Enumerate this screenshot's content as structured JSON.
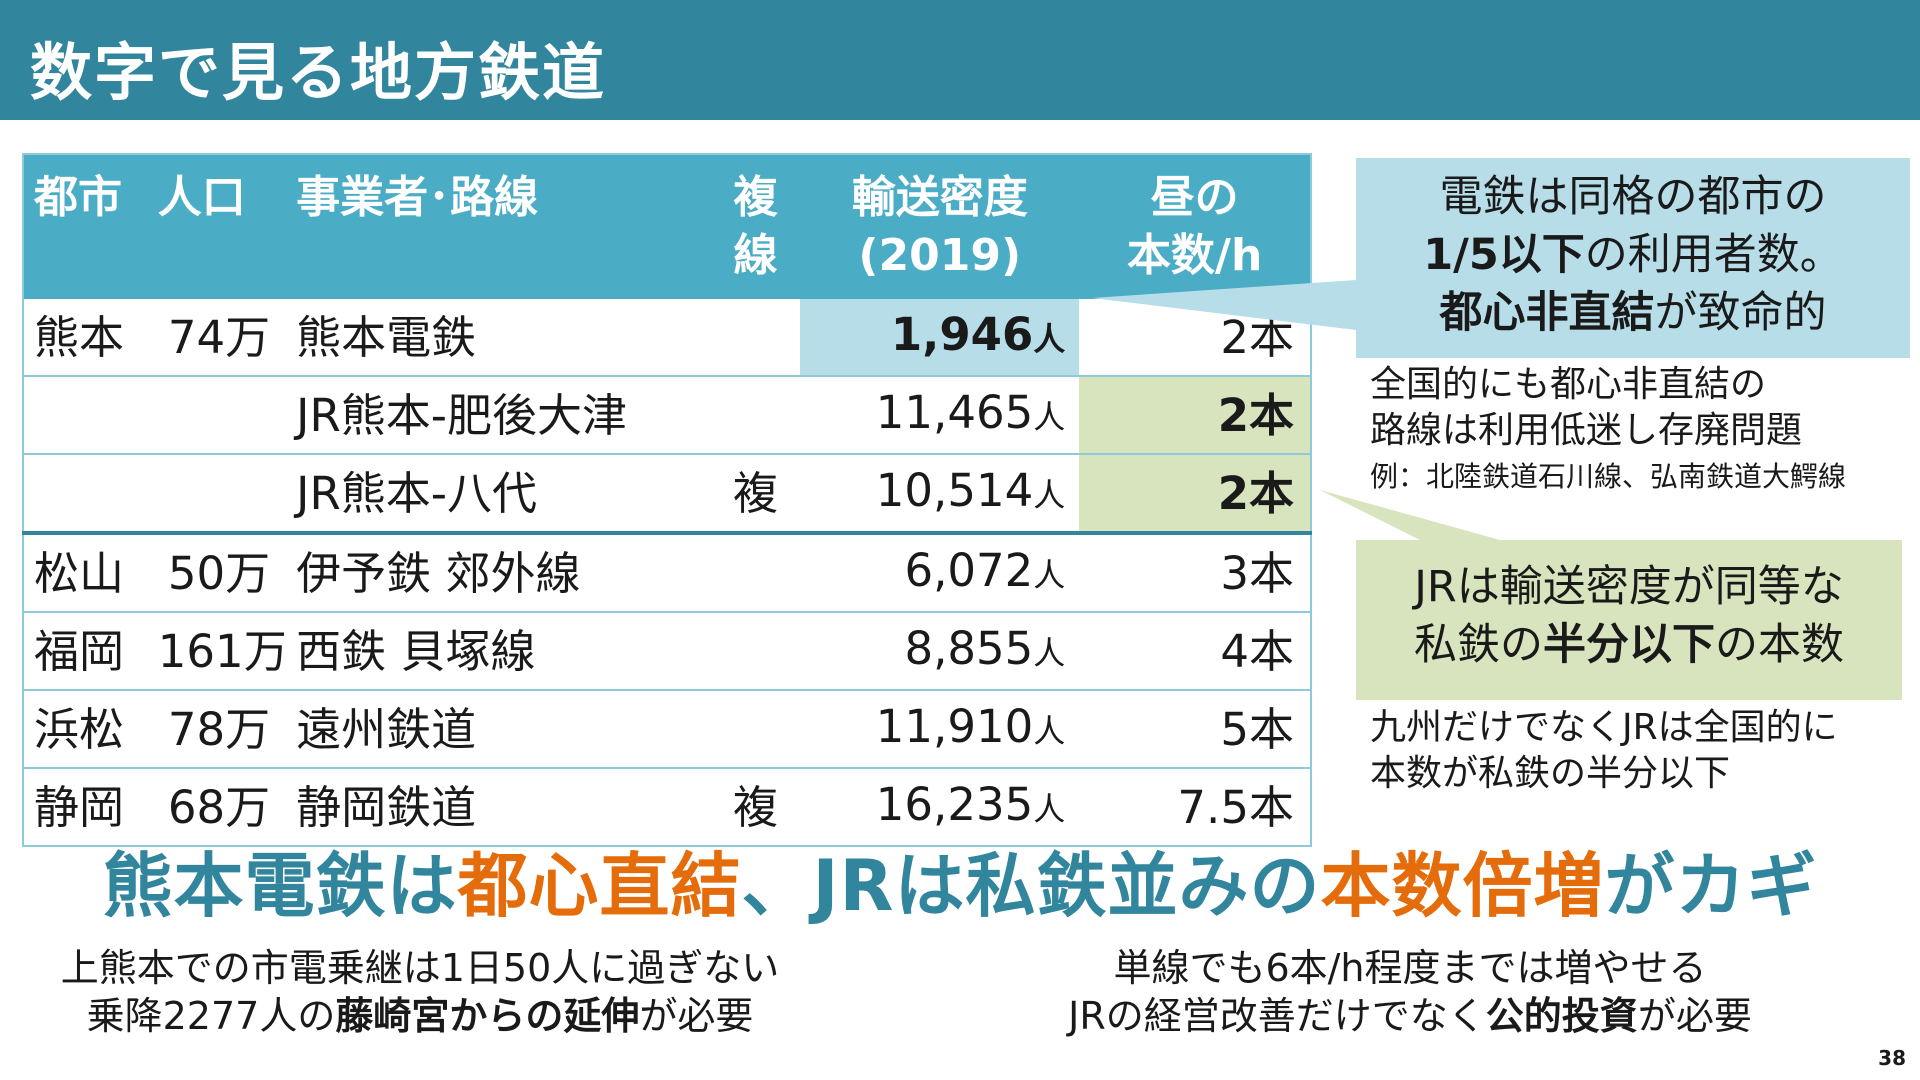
{
  "header": {
    "title": "数字で見る地方鉄道"
  },
  "table": {
    "headers": {
      "city": "都市",
      "population": "人口",
      "line": "事業者･路線",
      "double_line1": "複",
      "double_line2": "線",
      "density1": "輸送密度",
      "density2": "(2019)",
      "freq1": "昼の",
      "freq2": "本数/h"
    },
    "rows": [
      {
        "city": "熊本",
        "population": "74万",
        "line": "熊本電鉄",
        "double": "",
        "density": "1,946",
        "density_unit": "人",
        "freq": "2本"
      },
      {
        "city": "",
        "population": "",
        "line": "JR熊本-肥後大津",
        "double": "",
        "density": "11,465",
        "density_unit": "人",
        "freq": "2本"
      },
      {
        "city": "",
        "population": "",
        "line": "JR熊本-八代",
        "double": "複",
        "density": "10,514",
        "density_unit": "人",
        "freq": "2本"
      },
      {
        "city": "松山",
        "population": "50万",
        "line": "伊予鉄 郊外線",
        "double": "",
        "density": "6,072",
        "density_unit": "人",
        "freq": "3本"
      },
      {
        "city": "福岡",
        "population": "161万",
        "line": "西鉄 貝塚線",
        "double": "",
        "density": "8,855",
        "density_unit": "人",
        "freq": "4本"
      },
      {
        "city": "浜松",
        "population": "78万",
        "line": "遠州鉄道",
        "double": "",
        "density": "11,910",
        "density_unit": "人",
        "freq": "5本"
      },
      {
        "city": "静岡",
        "population": "68万",
        "line": "静岡鉄道",
        "double": "複",
        "density": "16,235",
        "density_unit": "人",
        "freq": "7.5本"
      }
    ]
  },
  "callout_blue": {
    "line1": "電鉄は同格の都市の",
    "line2_bold": "1/5以下",
    "line2_rest": "の利用者数。",
    "line3_bold": "都心非直結",
    "line3_rest": "が致命的"
  },
  "note_blue": {
    "line1": "全国的にも都心非直結の",
    "line2": "路線は利用低迷し存廃問題",
    "line3": "例：北陸鉄道石川線、弘南鉄道大鰐線"
  },
  "callout_green": {
    "line1": "JRは輸送密度が同等な",
    "line2_a": "私鉄の",
    "line2_bold": "半分以下",
    "line2_c": "の本数"
  },
  "note_green": {
    "line1": "九州だけでなくJRは全国的に",
    "line2": "本数が私鉄の半分以下"
  },
  "main_message": {
    "part1": "熊本電鉄は",
    "part2": "都心直結",
    "part3": "、JRは私鉄並みの",
    "part4": "本数倍増",
    "part5": "がカギ"
  },
  "sub_left": {
    "line1": "上熊本での市電乗継は1日50人に過ぎない",
    "line2_a": "乗降2277人の",
    "line2_bold": "藤崎宮からの延伸",
    "line2_c": "が必要"
  },
  "sub_right": {
    "line1": "単線でも6本/h程度までは増やせる",
    "line2_a": "JRの経営改善だけでなく",
    "line2_bold": "公的投資",
    "line2_c": "が必要"
  },
  "page_number": "38",
  "colors": {
    "header": "#31859c",
    "table_head": "#4bacc6",
    "highlight_blue": "#b7dde8",
    "highlight_green": "#d7e4bd",
    "accent_orange": "#e46c0a"
  }
}
